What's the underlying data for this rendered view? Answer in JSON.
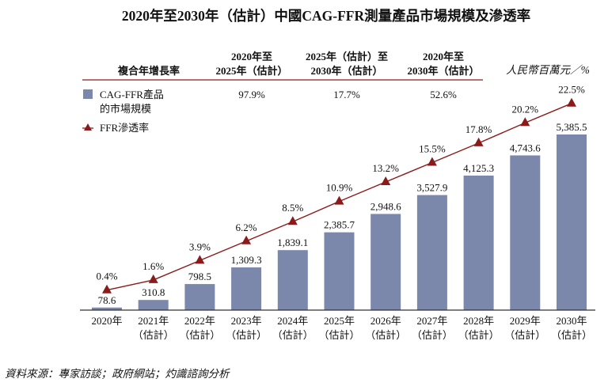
{
  "chart_data": {
    "type": "bar+line",
    "title": "2020年至2030年（估計）中國CAG-FFR測量產品市場規模及滲透率",
    "unit_label": "人民幣百萬元／%",
    "categories": [
      [
        "2020年",
        ""
      ],
      [
        "2021年",
        "（估計）"
      ],
      [
        "2022年",
        "（估計）"
      ],
      [
        "2023年",
        "（估計）"
      ],
      [
        "2024年",
        "（估計）"
      ],
      [
        "2025年",
        "（估計）"
      ],
      [
        "2026年",
        "（估計）"
      ],
      [
        "2027年",
        "（估計）"
      ],
      [
        "2028年",
        "（估計）"
      ],
      [
        "2029年",
        "（估計）"
      ],
      [
        "2030年",
        "（估計）"
      ]
    ],
    "series": [
      {
        "name": "CAG-FFR產品的市場規模",
        "type": "bar",
        "color": "#7b87ab",
        "values": [
          78.6,
          310.8,
          798.5,
          1309.3,
          1839.1,
          2385.7,
          2948.6,
          3527.9,
          4125.3,
          4743.6,
          5385.5
        ],
        "labels": [
          "78.6",
          "310.8",
          "798.5",
          "1,309.3",
          "1,839.1",
          "2,385.7",
          "2,948.6",
          "3,527.9",
          "4,125.3",
          "4,743.6",
          "5,385.5"
        ]
      },
      {
        "name": "FFR滲透率",
        "type": "line",
        "color": "#8b1a1a",
        "values": [
          0.4,
          1.6,
          3.9,
          6.2,
          8.5,
          10.9,
          13.2,
          15.5,
          17.8,
          20.2,
          22.5
        ],
        "labels": [
          "0.4%",
          "1.6%",
          "3.9%",
          "6.2%",
          "8.5%",
          "10.9%",
          "13.2%",
          "15.5%",
          "17.8%",
          "20.2%",
          "22.5%"
        ]
      }
    ],
    "legend": {
      "bar_label_line1": "CAG-FFR產品",
      "bar_label_line2": "的市場規模",
      "line_label": "FFR滲透率"
    },
    "cagr_table": {
      "row_header": "複合年增長率",
      "columns": [
        {
          "line1": "2020年至",
          "line2": "2025年（估計）",
          "value": "97.9%"
        },
        {
          "line1": "2025年（估計）至",
          "line2": "2030年（估計）",
          "value": "17.7%"
        },
        {
          "line1": "2020年至",
          "line2": "2030年（估計）",
          "value": "52.6%"
        }
      ]
    },
    "legend_placement": "top-left",
    "grid": false
  },
  "source": "資料來源：專家訪談；政府網站；灼識諮詢分析"
}
